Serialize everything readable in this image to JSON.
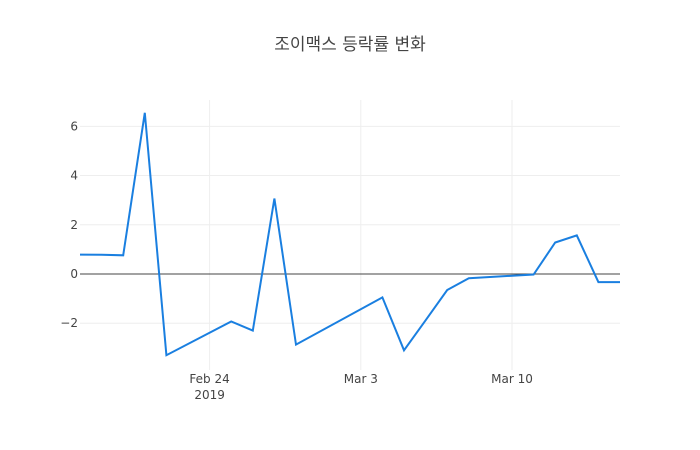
{
  "chart_data": {
    "type": "line",
    "title": "조이맥스 등락률 변화",
    "xlabel": "",
    "ylabel": "",
    "x": [
      "2019-02-18",
      "2019-02-19",
      "2019-02-20",
      "2019-02-21",
      "2019-02-22",
      "2019-02-25",
      "2019-02-26",
      "2019-02-27",
      "2019-02-28",
      "2019-03-04",
      "2019-03-05",
      "2019-03-06",
      "2019-03-07",
      "2019-03-08",
      "2019-03-11",
      "2019-03-12",
      "2019-03-13",
      "2019-03-14",
      "2019-03-15"
    ],
    "series": [
      {
        "name": "등락률",
        "color": "#1a7fe0",
        "values": [
          0.79,
          0.78,
          0.76,
          6.55,
          -3.3,
          -1.93,
          -2.3,
          3.07,
          -2.87,
          -0.95,
          -3.1,
          -1.88,
          -0.65,
          -0.17,
          -0.02,
          1.28,
          1.57,
          -0.33,
          -0.33
        ]
      }
    ],
    "x_ticks": [
      {
        "date": "2019-02-24",
        "label": "Feb 24",
        "sublabel": "2019"
      },
      {
        "date": "2019-03-03",
        "label": "Mar 3",
        "sublabel": ""
      },
      {
        "date": "2019-03-10",
        "label": "Mar 10",
        "sublabel": ""
      }
    ],
    "y_ticks": [
      6,
      4,
      2,
      0,
      -2
    ],
    "y_tick_labels": [
      "6",
      "4",
      "2",
      "0",
      "−2"
    ],
    "xlim": [
      "2019-02-18",
      "2019-03-15"
    ],
    "ylim": [
      -3.9,
      7.07
    ],
    "grid": true,
    "zero_line": true,
    "legend": false
  }
}
